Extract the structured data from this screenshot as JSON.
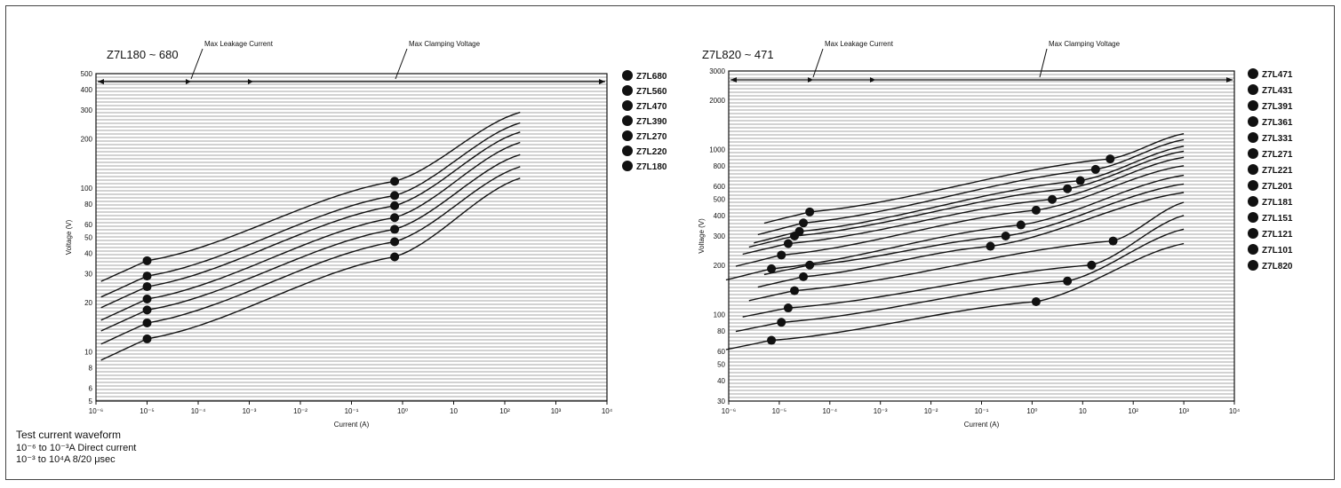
{
  "test_waveform": {
    "title": "Test current waveform",
    "line1": "10⁻⁶ to 10⁻³A  Direct current",
    "line2": "10⁻³ to 10⁴A  8/20 μsec"
  },
  "colors": {
    "ink": "#111111",
    "grid": "#222222"
  },
  "chart_data": [
    {
      "type": "line",
      "title": "Z7L180 ~ 680",
      "xlabel": "Current (A)",
      "ylabel": "Voltage (V)",
      "scale": "log-log",
      "xlim": [
        1e-06,
        10000.0
      ],
      "ylim": [
        5,
        500
      ],
      "x_ticks": [
        {
          "v": 1e-06,
          "label": "10⁻⁶"
        },
        {
          "v": 1e-05,
          "label": "10⁻⁵"
        },
        {
          "v": 0.0001,
          "label": "10⁻⁴"
        },
        {
          "v": 0.001,
          "label": "10⁻³"
        },
        {
          "v": 0.01,
          "label": "10⁻²"
        },
        {
          "v": 0.1,
          "label": "10⁻¹"
        },
        {
          "v": 1,
          "label": "10⁰"
        },
        {
          "v": 10,
          "label": "10"
        },
        {
          "v": 100,
          "label": "10²"
        },
        {
          "v": 1000,
          "label": "10³"
        },
        {
          "v": 10000,
          "label": "10⁴"
        }
      ],
      "y_ticks": [
        5,
        6,
        8,
        10,
        20,
        30,
        40,
        50,
        60,
        80,
        100,
        200,
        300,
        400,
        500
      ],
      "annotations": {
        "leakage": "Max Leakage Current",
        "clamping": "Max Clamping Voltage"
      },
      "legend_position": "right",
      "grid": true,
      "series": [
        {
          "name": "Z7L680",
          "x": [
            1e-05,
            0.7,
            200
          ],
          "y": [
            36,
            110,
            290
          ]
        },
        {
          "name": "Z7L560",
          "x": [
            1e-05,
            0.7,
            200
          ],
          "y": [
            29,
            90,
            250
          ]
        },
        {
          "name": "Z7L470",
          "x": [
            1e-05,
            0.7,
            200
          ],
          "y": [
            25,
            78,
            220
          ]
        },
        {
          "name": "Z7L390",
          "x": [
            1e-05,
            0.7,
            200
          ],
          "y": [
            21,
            66,
            190
          ]
        },
        {
          "name": "Z7L270",
          "x": [
            1e-05,
            0.7,
            200
          ],
          "y": [
            18,
            56,
            160
          ]
        },
        {
          "name": "Z7L220",
          "x": [
            1e-05,
            0.7,
            200
          ],
          "y": [
            15,
            47,
            135
          ]
        },
        {
          "name": "Z7L180",
          "x": [
            1e-05,
            0.7,
            200
          ],
          "y": [
            12,
            38,
            115
          ]
        }
      ]
    },
    {
      "type": "line",
      "title": "Z7L820 ~ 471",
      "xlabel": "Current (A)",
      "ylabel": "Voltage (V)",
      "scale": "log-log",
      "xlim": [
        1e-06,
        10000.0
      ],
      "ylim": [
        30,
        3000
      ],
      "x_ticks": [
        {
          "v": 1e-06,
          "label": "10⁻⁶"
        },
        {
          "v": 1e-05,
          "label": "10⁻⁵"
        },
        {
          "v": 0.0001,
          "label": "10⁻⁴"
        },
        {
          "v": 0.001,
          "label": "10⁻³"
        },
        {
          "v": 0.01,
          "label": "10⁻²"
        },
        {
          "v": 0.1,
          "label": "10⁻¹"
        },
        {
          "v": 1,
          "label": "10⁰"
        },
        {
          "v": 10,
          "label": "10"
        },
        {
          "v": 100,
          "label": "10²"
        },
        {
          "v": 1000,
          "label": "10³"
        },
        {
          "v": 10000,
          "label": "10⁴"
        }
      ],
      "y_ticks": [
        30,
        40,
        50,
        60,
        80,
        100,
        200,
        300,
        400,
        500,
        600,
        800,
        1000,
        2000,
        3000
      ],
      "annotations": {
        "leakage": "Max Leakage Current",
        "clamping": "Max Clamping Voltage"
      },
      "legend_position": "right",
      "grid": true,
      "series": [
        {
          "name": "Z7L471",
          "x": [
            4e-05,
            35,
            1000
          ],
          "y": [
            420,
            880,
            1250
          ]
        },
        {
          "name": "Z7L431",
          "x": [
            3e-05,
            18,
            1000
          ],
          "y": [
            360,
            760,
            1150
          ]
        },
        {
          "name": "Z7L391",
          "x": [
            2.5e-05,
            9,
            1000
          ],
          "y": [
            320,
            650,
            1050
          ]
        },
        {
          "name": "Z7L361",
          "x": [
            2e-05,
            5,
            1000
          ],
          "y": [
            300,
            580,
            980
          ]
        },
        {
          "name": "Z7L331",
          "x": [
            1.5e-05,
            2.5,
            1000
          ],
          "y": [
            270,
            500,
            900
          ]
        },
        {
          "name": "Z7L271",
          "x": [
            1.1e-05,
            1.2,
            1000
          ],
          "y": [
            230,
            430,
            800
          ]
        },
        {
          "name": "Z7L221",
          "x": [
            7e-06,
            0.6,
            1000
          ],
          "y": [
            190,
            350,
            700
          ]
        },
        {
          "name": "Z7L201",
          "x": [
            4e-05,
            0.3,
            1000
          ],
          "y": [
            200,
            300,
            620
          ]
        },
        {
          "name": "Z7L181",
          "x": [
            3e-05,
            0.15,
            1000
          ],
          "y": [
            170,
            260,
            550
          ]
        },
        {
          "name": "Z7L151",
          "x": [
            2e-05,
            40,
            1000
          ],
          "y": [
            140,
            280,
            480
          ]
        },
        {
          "name": "Z7L121",
          "x": [
            1.5e-05,
            15,
            1000
          ],
          "y": [
            110,
            200,
            400
          ]
        },
        {
          "name": "Z7L101",
          "x": [
            1.1e-05,
            5,
            1000
          ],
          "y": [
            90,
            160,
            330
          ]
        },
        {
          "name": "Z7L820",
          "x": [
            7e-06,
            1.2,
            1000
          ],
          "y": [
            70,
            120,
            270
          ]
        }
      ]
    }
  ]
}
